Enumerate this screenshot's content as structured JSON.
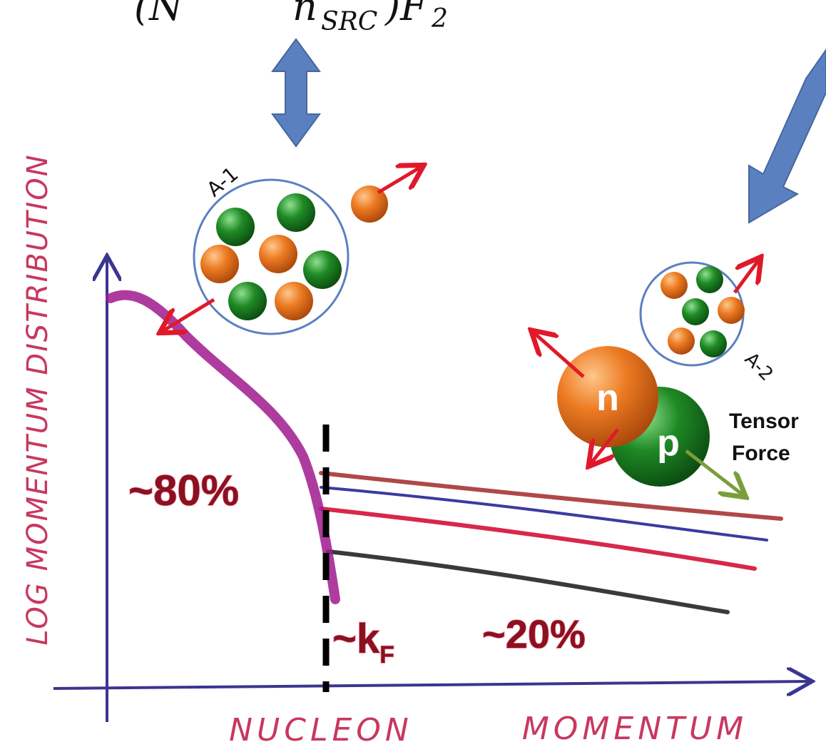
{
  "formula": {
    "open": "(N",
    "minus_term": "n",
    "minus_term_subscript": "SRC",
    "close": ")F",
    "close_subscript": "2"
  },
  "nuclei": {
    "a_minus_1": "A-1",
    "a_minus_2": "A-2"
  },
  "pair": {
    "neutron": "n",
    "proton": "p",
    "force_line1": "Tensor",
    "force_line2": "Force"
  },
  "annotations": {
    "low_fraction": "~80%",
    "fermi": "~k",
    "fermi_subscript": "F",
    "high_fraction": "~20%"
  },
  "axes": {
    "y_label": "LOG MOMENTUM DISTRIBUTION",
    "x_label_1": "NUCLEON",
    "x_label_2": "MOMENTUM"
  }
}
